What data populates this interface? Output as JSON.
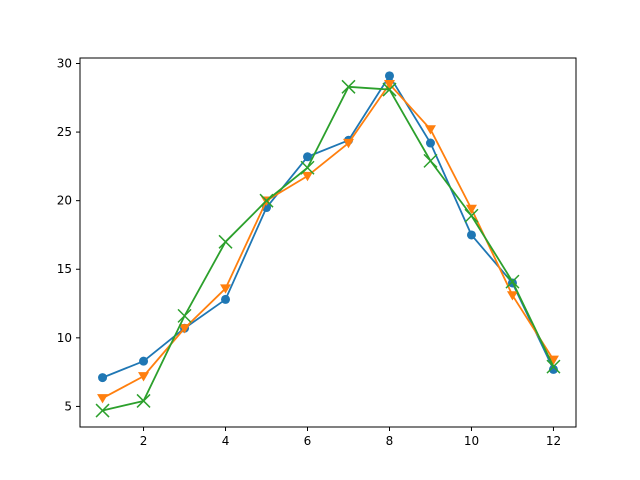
{
  "chart_data": {
    "type": "line",
    "xlim": [
      0.45,
      12.55
    ],
    "ylim": [
      3.5,
      30.4
    ],
    "xticks": [
      2,
      4,
      6,
      8,
      10,
      12
    ],
    "yticks": [
      5,
      10,
      15,
      20,
      25,
      30
    ],
    "grid": false,
    "x": [
      1,
      2,
      3,
      4,
      5,
      6,
      7,
      8,
      9,
      10,
      11,
      12
    ],
    "series": [
      {
        "color": "#1f77b4",
        "marker": "circle",
        "values": [
          7.1,
          8.3,
          10.7,
          12.8,
          19.5,
          23.2,
          24.4,
          29.1,
          24.2,
          17.5,
          14.0,
          7.7
        ]
      },
      {
        "color": "#ff7f0e",
        "marker": "triangle-down",
        "values": [
          5.6,
          7.2,
          10.7,
          13.6,
          20.0,
          21.8,
          24.2,
          28.5,
          25.2,
          19.4,
          13.1,
          8.4
        ]
      },
      {
        "color": "#2ca02c",
        "marker": "x",
        "values": [
          4.7,
          5.4,
          11.6,
          17.0,
          20.0,
          22.4,
          28.3,
          28.1,
          22.9,
          18.9,
          14.1,
          7.9
        ]
      }
    ]
  }
}
